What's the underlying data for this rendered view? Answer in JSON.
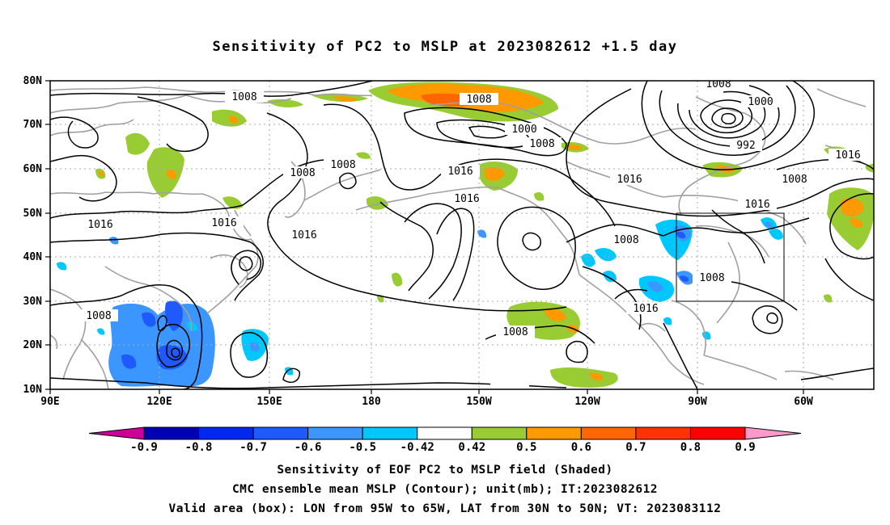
{
  "title": "Sensitivity of PC2 to MSLP at 2023082612 +1.5 day",
  "lat_labels": [
    "80N",
    "70N",
    "60N",
    "50N",
    "40N",
    "30N",
    "20N",
    "10N"
  ],
  "lon_labels": [
    "90E",
    "120E",
    "150E",
    "180",
    "150W",
    "120W",
    "90W",
    "60W"
  ],
  "contour_labels": [
    "1008",
    "1008",
    "1000",
    "1008",
    "1008",
    "1008",
    "1016",
    "1008",
    "1000",
    "992",
    "1016",
    "1008",
    "1016",
    "1016",
    "1016",
    "1016",
    "1016",
    "1016",
    "1008",
    "1008",
    "1016",
    "1008",
    "1008"
  ],
  "colorbar": {
    "colors": [
      "#cc0099",
      "#0000b4",
      "#0028f0",
      "#1e5aff",
      "#3c96ff",
      "#00c8ff",
      "#ffffff",
      "#99cc33",
      "#ff9900",
      "#ff6600",
      "#ff3300",
      "#ff0000",
      "#ff99cc"
    ],
    "tick_labels": [
      "-0.9",
      "-0.8",
      "-0.7",
      "-0.6",
      "-0.5",
      "-0.42",
      "0.42",
      "0.5",
      "0.6",
      "0.7",
      "0.8",
      "0.9"
    ]
  },
  "footer": {
    "line1": "Sensitivity of EOF PC2 to MSLP field (Shaded)",
    "line2": "CMC ensemble mean MSLP (Contour); unit(mb); IT:2023082612",
    "line3": "Valid area (box): LON from 95W to 65W, LAT from 30N to 50N; VT: 2023083112"
  }
}
